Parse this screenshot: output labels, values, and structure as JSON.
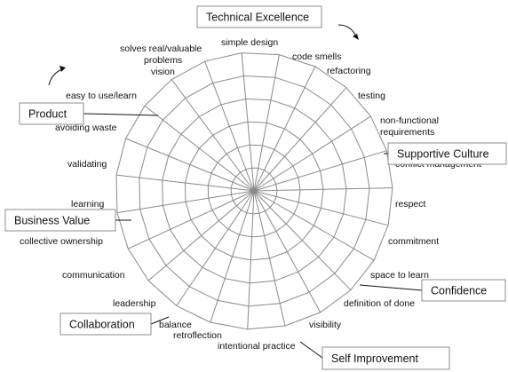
{
  "diagram": {
    "type": "radar-wheel",
    "rings": 6,
    "spokes": [
      {
        "id": "simple-design",
        "lines": [
          "simple design"
        ]
      },
      {
        "id": "code-smells",
        "lines": [
          "code smells"
        ]
      },
      {
        "id": "refactoring",
        "lines": [
          "refactoring"
        ]
      },
      {
        "id": "testing",
        "lines": [
          "testing"
        ]
      },
      {
        "id": "non-functional-requirements",
        "lines": [
          "non-functional",
          "requirements"
        ]
      },
      {
        "id": "conflict-management",
        "lines": [
          "conflict management"
        ]
      },
      {
        "id": "respect",
        "lines": [
          "respect"
        ]
      },
      {
        "id": "commitment",
        "lines": [
          "commitment"
        ]
      },
      {
        "id": "space-to-learn",
        "lines": [
          "space to learn"
        ]
      },
      {
        "id": "definition-of-done",
        "lines": [
          "definition of done"
        ]
      },
      {
        "id": "visibility",
        "lines": [
          "visibility"
        ]
      },
      {
        "id": "intentional-practice",
        "lines": [
          "intentional practice"
        ]
      },
      {
        "id": "retroflection",
        "lines": [
          "retroflection"
        ]
      },
      {
        "id": "balance",
        "lines": [
          "balance"
        ]
      },
      {
        "id": "leadership",
        "lines": [
          "leadership"
        ]
      },
      {
        "id": "communication",
        "lines": [
          "communication"
        ]
      },
      {
        "id": "collective-ownership",
        "lines": [
          "collective ownership"
        ]
      },
      {
        "id": "learning",
        "lines": [
          "learning"
        ]
      },
      {
        "id": "validating",
        "lines": [
          "validating"
        ]
      },
      {
        "id": "avoiding-waste",
        "lines": [
          "avoiding waste"
        ]
      },
      {
        "id": "easy-to-use-learn",
        "lines": [
          "easy to use/learn"
        ]
      },
      {
        "id": "vision",
        "lines": [
          "vision"
        ]
      },
      {
        "id": "solves-real-valuable-problems",
        "lines": [
          "solves real/valuable",
          "problems"
        ]
      }
    ],
    "categories": [
      {
        "id": "technical-excellence",
        "label": "Technical Excellence"
      },
      {
        "id": "supportive-culture",
        "label": "Supportive Culture"
      },
      {
        "id": "confidence",
        "label": "Confidence"
      },
      {
        "id": "self-improvement",
        "label": "Self Improvement"
      },
      {
        "id": "collaboration",
        "label": "Collaboration"
      },
      {
        "id": "business-value",
        "label": "Business Value"
      },
      {
        "id": "product",
        "label": "Product"
      }
    ],
    "colors": {
      "grid": "#8a8a8a",
      "text": "#111111",
      "box_border": "#8c8c8c",
      "background": "#ffffff"
    }
  }
}
